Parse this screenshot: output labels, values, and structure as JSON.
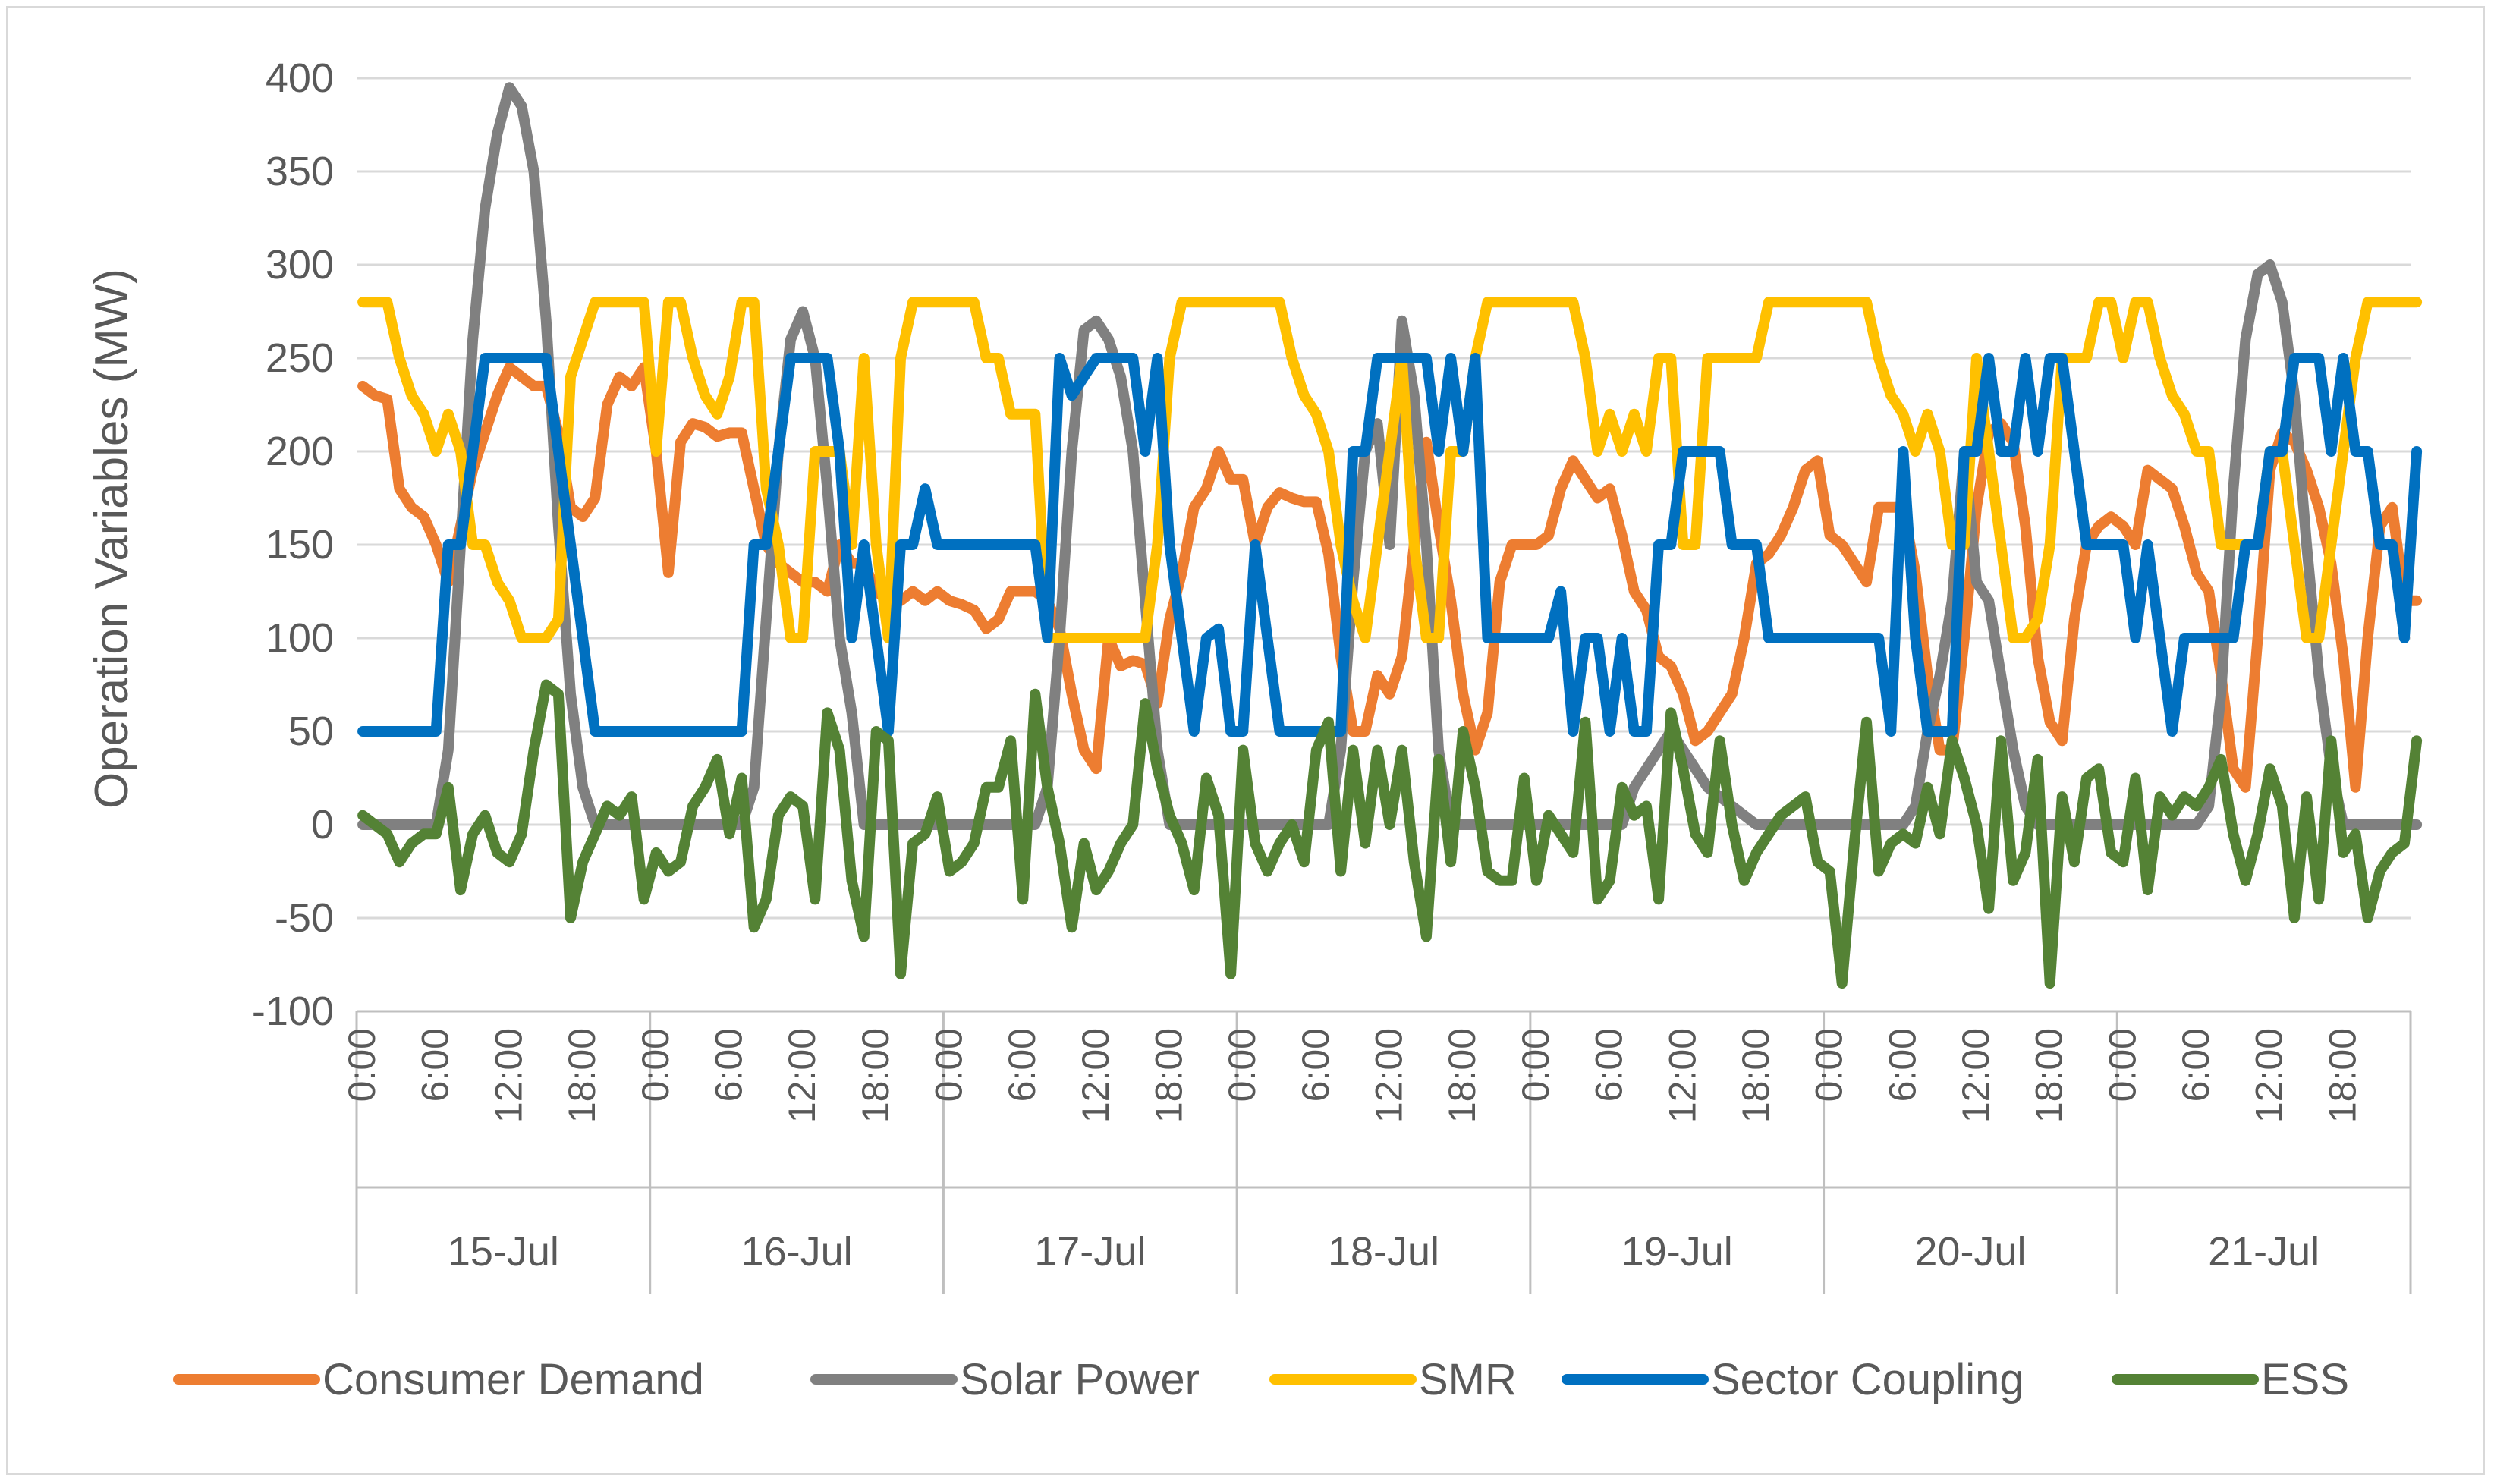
{
  "chart_data": {
    "type": "line",
    "title": "",
    "xlabel": "",
    "ylabel": "Operation Variables (MW)",
    "ylim": [
      -100,
      400
    ],
    "y_ticks": [
      "400",
      "350",
      "300",
      "250",
      "200",
      "150",
      "100",
      "50",
      "0",
      "-50",
      "-100"
    ],
    "y_tick_values": [
      400,
      350,
      300,
      250,
      200,
      150,
      100,
      50,
      0,
      -50,
      -100
    ],
    "grid": "horizontal",
    "legend_position": "bottom",
    "days": [
      "15-Jul",
      "16-Jul",
      "17-Jul",
      "18-Jul",
      "19-Jul",
      "20-Jul",
      "21-Jul"
    ],
    "hour_ticks": [
      "0:00",
      "6:00",
      "12:00",
      "18:00"
    ],
    "hours_per_day": 24,
    "colors": {
      "Consumer Demand": "#ed7d31",
      "Solar Power": "#808080",
      "SMR": "#ffc000",
      "Sector Coupling": "#0070c0",
      "ESS": "#548235",
      "grid": "#d9d9d9",
      "axis": "#bfbfbf"
    },
    "series": [
      {
        "name": "Consumer Demand",
        "values": [
          235,
          230,
          228,
          180,
          170,
          165,
          150,
          130,
          160,
          190,
          210,
          230,
          245,
          240,
          235,
          235,
          210,
          170,
          165,
          175,
          225,
          240,
          235,
          245,
          200,
          135,
          205,
          215,
          213,
          208,
          210,
          210,
          180,
          150,
          140,
          135,
          130,
          130,
          125,
          150,
          140,
          140,
          125,
          120,
          120,
          125,
          120,
          125,
          120,
          118,
          115,
          105,
          110,
          125,
          125,
          125,
          120,
          105,
          70,
          40,
          30,
          100,
          85,
          88,
          86,
          65,
          110,
          135,
          170,
          180,
          200,
          185,
          185,
          150,
          170,
          178,
          175,
          173,
          173,
          145,
          90,
          50,
          50,
          80,
          70,
          90,
          150,
          205,
          160,
          120,
          70,
          40,
          60,
          130,
          150,
          150,
          150,
          155,
          180,
          195,
          185,
          175,
          180,
          155,
          125,
          115,
          90,
          85,
          70,
          45,
          50,
          60,
          70,
          100,
          140,
          145,
          155,
          170,
          190,
          195,
          155,
          150,
          140,
          130,
          170,
          170,
          170,
          135,
          80,
          40,
          40,
          100,
          170,
          210,
          215,
          205,
          160,
          90,
          55,
          45,
          110,
          150,
          160,
          165,
          160,
          150,
          190,
          185,
          180,
          160,
          135,
          125,
          80,
          30,
          20,
          100,
          190,
          210,
          205,
          190,
          170,
          140,
          90,
          20,
          100,
          160,
          170,
          120,
          120
        ]
      },
      {
        "name": "Solar Power",
        "values": [
          0,
          0,
          0,
          0,
          0,
          0,
          0,
          40,
          150,
          260,
          330,
          370,
          395,
          385,
          350,
          270,
          160,
          70,
          20,
          0,
          0,
          0,
          0,
          0,
          0,
          0,
          0,
          0,
          0,
          0,
          0,
          0,
          20,
          110,
          200,
          260,
          275,
          250,
          180,
          100,
          60,
          0,
          0,
          0,
          0,
          0,
          0,
          0,
          0,
          0,
          0,
          0,
          0,
          0,
          0,
          0,
          20,
          100,
          200,
          265,
          270,
          260,
          240,
          200,
          120,
          40,
          0,
          0,
          0,
          0,
          0,
          0,
          0,
          0,
          0,
          0,
          0,
          0,
          0,
          0,
          40,
          130,
          200,
          215,
          150,
          270,
          230,
          150,
          40,
          0,
          0,
          0,
          0,
          0,
          0,
          0,
          0,
          0,
          0,
          0,
          0,
          0,
          0,
          0,
          20,
          30,
          40,
          50,
          40,
          30,
          20,
          15,
          10,
          5,
          0,
          0,
          0,
          0,
          0,
          0,
          0,
          0,
          0,
          0,
          0,
          0,
          0,
          10,
          50,
          80,
          120,
          200,
          130,
          120,
          80,
          40,
          10,
          0,
          0,
          0,
          0,
          0,
          0,
          0,
          0,
          0,
          0,
          0,
          0,
          0,
          0,
          10,
          70,
          180,
          260,
          295,
          300,
          280,
          230,
          150,
          80,
          30,
          0,
          0,
          0,
          0,
          0,
          0,
          0
        ]
      },
      {
        "name": "SMR",
        "values": [
          280,
          280,
          280,
          250,
          230,
          220,
          200,
          220,
          200,
          150,
          150,
          130,
          120,
          100,
          100,
          100,
          110,
          240,
          260,
          280,
          280,
          280,
          280,
          280,
          200,
          280,
          280,
          250,
          230,
          220,
          240,
          280,
          280,
          180,
          150,
          100,
          100,
          200,
          200,
          200,
          150,
          250,
          150,
          100,
          250,
          280,
          280,
          280,
          280,
          280,
          280,
          250,
          250,
          220,
          220,
          220,
          100,
          100,
          100,
          100,
          100,
          100,
          100,
          100,
          100,
          150,
          250,
          280,
          280,
          280,
          280,
          280,
          280,
          280,
          280,
          280,
          250,
          230,
          220,
          200,
          150,
          120,
          100,
          150,
          200,
          250,
          150,
          100,
          100,
          200,
          200,
          250,
          280,
          280,
          280,
          280,
          280,
          280,
          280,
          280,
          250,
          200,
          220,
          200,
          220,
          200,
          250,
          250,
          150,
          150,
          250,
          250,
          250,
          250,
          250,
          280,
          280,
          280,
          280,
          280,
          280,
          280,
          280,
          280,
          250,
          230,
          220,
          200,
          220,
          200,
          150,
          150,
          250,
          200,
          150,
          100,
          100,
          110,
          150,
          250,
          250,
          250,
          280,
          280,
          250,
          280,
          280,
          250,
          230,
          220,
          200,
          200,
          150,
          150,
          150,
          150,
          200,
          200,
          150,
          100,
          100,
          150,
          200,
          250,
          280,
          280,
          280,
          280,
          280
        ]
      },
      {
        "name": "Sector Coupling",
        "values": [
          50,
          50,
          50,
          50,
          50,
          50,
          50,
          150,
          150,
          200,
          250,
          250,
          250,
          250,
          250,
          250,
          200,
          150,
          100,
          50,
          50,
          50,
          50,
          50,
          50,
          50,
          50,
          50,
          50,
          50,
          50,
          50,
          150,
          150,
          200,
          250,
          250,
          250,
          250,
          200,
          100,
          150,
          100,
          50,
          150,
          150,
          180,
          150,
          150,
          150,
          150,
          150,
          150,
          150,
          150,
          150,
          100,
          250,
          230,
          240,
          250,
          250,
          250,
          250,
          200,
          250,
          150,
          100,
          50,
          100,
          105,
          50,
          50,
          150,
          100,
          50,
          50,
          50,
          50,
          50,
          50,
          200,
          200,
          250,
          250,
          250,
          250,
          250,
          200,
          250,
          200,
          250,
          100,
          100,
          100,
          100,
          100,
          100,
          125,
          50,
          100,
          100,
          50,
          100,
          50,
          50,
          150,
          150,
          200,
          200,
          200,
          200,
          150,
          150,
          150,
          100,
          100,
          100,
          100,
          100,
          100,
          100,
          100,
          100,
          100,
          50,
          200,
          100,
          50,
          50,
          50,
          200,
          200,
          250,
          200,
          200,
          250,
          200,
          250,
          250,
          200,
          150,
          150,
          150,
          150,
          100,
          150,
          100,
          50,
          100,
          100,
          100,
          100,
          100,
          150,
          150,
          200,
          200,
          250,
          250,
          250,
          200,
          250,
          200,
          200,
          150,
          150,
          100,
          200
        ]
      },
      {
        "name": "ESS",
        "values": [
          5,
          0,
          -5,
          -20,
          -10,
          -5,
          -5,
          20,
          -35,
          -5,
          5,
          -15,
          -20,
          -5,
          40,
          75,
          70,
          -50,
          -20,
          -5,
          10,
          5,
          15,
          -40,
          -15,
          -25,
          -20,
          10,
          20,
          35,
          -5,
          25,
          -55,
          -40,
          5,
          15,
          10,
          -40,
          60,
          40,
          -30,
          -60,
          50,
          45,
          -80,
          -10,
          -5,
          15,
          -25,
          -20,
          -10,
          20,
          20,
          45,
          -40,
          70,
          20,
          -10,
          -55,
          -10,
          -35,
          -25,
          -10,
          0,
          65,
          30,
          5,
          -10,
          -35,
          25,
          5,
          -80,
          40,
          -10,
          -25,
          -10,
          0,
          -20,
          40,
          55,
          -25,
          40,
          -10,
          40,
          0,
          40,
          -20,
          -60,
          35,
          -20,
          50,
          20,
          -25,
          -30,
          -30,
          25,
          -30,
          5,
          -5,
          -15,
          55,
          -40,
          -30,
          20,
          5,
          10,
          -40,
          60,
          30,
          -5,
          -15,
          45,
          0,
          -30,
          -15,
          -5,
          5,
          10,
          15,
          -20,
          -25,
          -85,
          -10,
          55,
          -25,
          -10,
          -5,
          -10,
          20,
          -5,
          45,
          25,
          0,
          -45,
          45,
          -30,
          -15,
          35,
          -85,
          15,
          -20,
          25,
          30,
          -15,
          -20,
          25,
          -35,
          15,
          5,
          15,
          10,
          20,
          35,
          -5,
          -30,
          -5,
          30,
          10,
          -50,
          15,
          -40,
          45,
          -15,
          -5,
          -50,
          -25,
          -15,
          -10,
          45
        ]
      }
    ]
  }
}
